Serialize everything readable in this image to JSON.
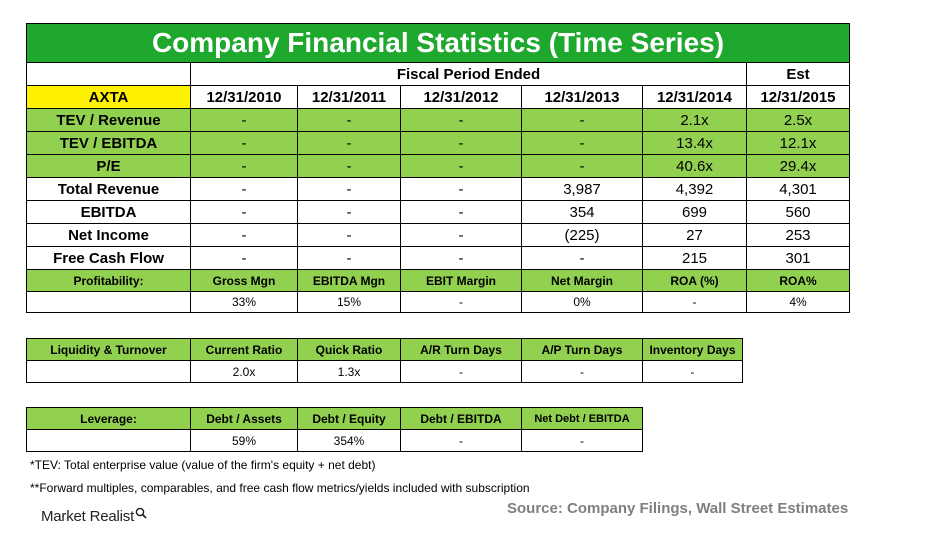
{
  "title": "Company Financial Statistics (Time Series)",
  "fiscal_period_label": "Fiscal Period Ended",
  "est_label": "Est",
  "ticker": "AXTA",
  "dates": [
    "12/31/2010",
    "12/31/2011",
    "12/31/2012",
    "12/31/2013",
    "12/31/2014",
    "12/31/2015"
  ],
  "rows": [
    {
      "label": "TEV / Revenue",
      "values": [
        "-",
        "-",
        "-",
        "-",
        "2.1x",
        "2.5x"
      ]
    },
    {
      "label": "TEV / EBITDA",
      "values": [
        "-",
        "-",
        "-",
        "-",
        "13.4x",
        "12.1x"
      ]
    },
    {
      "label": "P/E",
      "values": [
        "-",
        "-",
        "-",
        "-",
        "40.6x",
        "29.4x"
      ]
    },
    {
      "label": "Total Revenue",
      "values": [
        "-",
        "-",
        "-",
        "3,987",
        "4,392",
        "4,301"
      ]
    },
    {
      "label": "EBITDA",
      "values": [
        "-",
        "-",
        "-",
        "354",
        "699",
        "560"
      ]
    },
    {
      "label": "Net Income",
      "values": [
        "-",
        "-",
        "-",
        "(225)",
        "27",
        "253"
      ]
    },
    {
      "label": "Free Cash Flow",
      "values": [
        "-",
        "-",
        "-",
        "-",
        "215",
        "301"
      ]
    }
  ],
  "profitability": {
    "label": "Profitability:",
    "headers": [
      "Gross Mgn",
      "EBITDA Mgn",
      "EBIT Margin",
      "Net Margin",
      "ROA (%)",
      "ROA%"
    ],
    "values": [
      "33%",
      "15%",
      "-",
      "0%",
      "-",
      "4%"
    ]
  },
  "liquidity": {
    "label": "Liquidity & Turnover",
    "headers": [
      "Current Ratio",
      "Quick Ratio",
      "A/R Turn Days",
      "A/P Turn Days",
      "Inventory Days"
    ],
    "values": [
      "2.0x",
      "1.3x",
      "-",
      "-",
      "-"
    ]
  },
  "leverage": {
    "label": "Leverage:",
    "headers": [
      "Debt / Assets",
      "Debt / Equity",
      "Debt / EBITDA",
      "Net Debt / EBITDA"
    ],
    "values": [
      "59%",
      "354%",
      "-",
      "-"
    ]
  },
  "footnotes": [
    "*TEV: Total enterprise value (value of the firm's equity + net debt)",
    "**Forward multiples, comparables, and free cash flow metrics/yields included with subscription"
  ],
  "source": "Source: Company Filings, Wall Street Estimates",
  "logo_text": "Market Realist",
  "colors": {
    "title_green": "#1fa82e",
    "light_green": "#92d050",
    "axta_yellow": "#fff200",
    "source_gray": "#7f7f7f"
  }
}
